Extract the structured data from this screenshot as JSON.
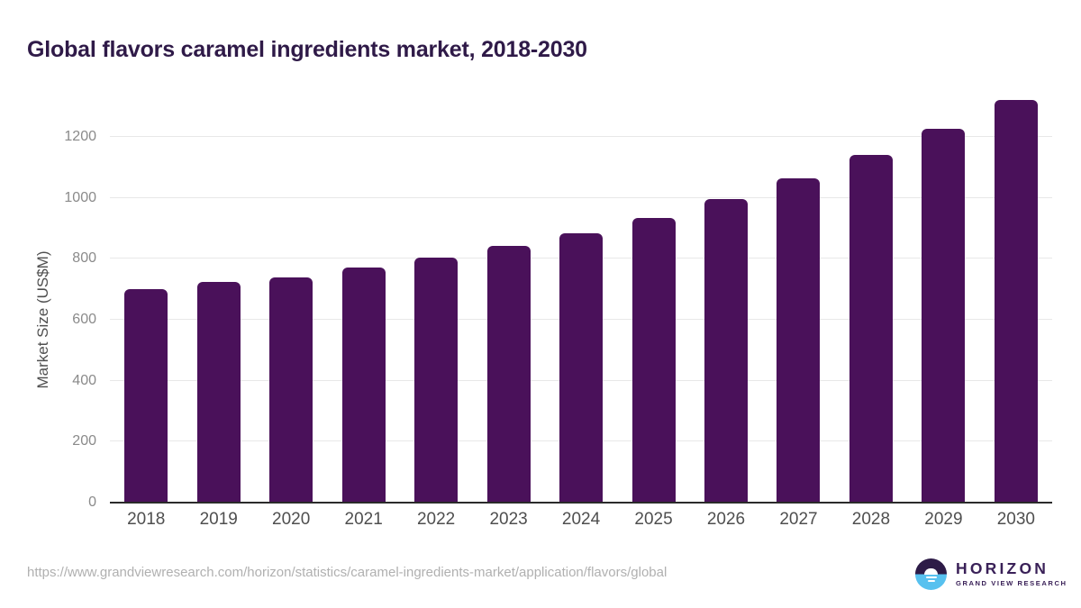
{
  "header": {
    "title": "Global flavors caramel ingredients market, 2018-2030",
    "title_color": "#2f1a48"
  },
  "chart_data": {
    "type": "bar",
    "title": "Global flavors caramel ingredients market, 2018-2030",
    "categories": [
      "2018",
      "2019",
      "2020",
      "2021",
      "2022",
      "2023",
      "2024",
      "2025",
      "2026",
      "2027",
      "2028",
      "2029",
      "2030"
    ],
    "values": [
      700,
      723,
      739,
      771,
      804,
      843,
      884,
      933,
      995,
      1063,
      1140,
      1227,
      1321
    ],
    "xlabel": "",
    "ylabel": "Market Size (US$M)",
    "ylim": [
      0,
      1360
    ],
    "yticks": [
      0,
      200,
      400,
      600,
      800,
      1000,
      1200
    ],
    "grid": true,
    "legend": false,
    "bar_color": "#4a115a",
    "gridline_color": "#e8e8e8",
    "axis_line_color": "#2b2b2b",
    "y_tick_label_color": "#8a8a8a",
    "x_tick_label_color": "#4f4f4f",
    "ylabel_color": "#4f4f4f"
  },
  "footer": {
    "source_url": "https://www.grandviewresearch.com/horizon/statistics/caramel-ingredients-market/application/flavors/global",
    "source_url_color": "#b0b0b0",
    "logo": {
      "brand": "HORIZON",
      "tagline": "GRAND VIEW RESEARCH",
      "text_color": "#3a2158",
      "icon_top_color": "#2d1b47",
      "icon_bottom_color": "#57c1ef"
    }
  }
}
